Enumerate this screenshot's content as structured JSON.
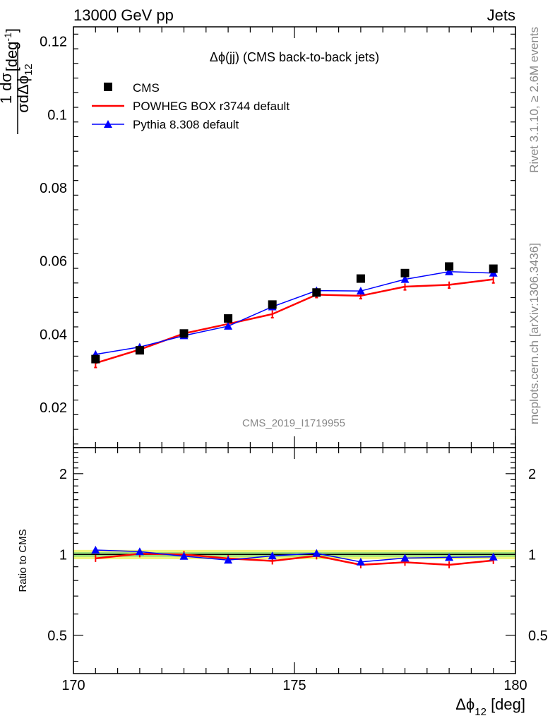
{
  "header": {
    "left": "13000 GeV pp",
    "right": "Jets"
  },
  "side_text": {
    "rivet": "Rivet 3.1.10, ≥ 2.6M events",
    "mcplots": "mcplots.cern.ch [arXiv:1306.3436]"
  },
  "chart_data": [
    {
      "type": "scatter",
      "title": "Δϕ(jj) (CMS back-to-back jets)",
      "ylabel": "1/σ dσ/dΔϕ_12 [deg^-1]",
      "watermark": "CMS_2019_I1719955",
      "xlim": [
        170,
        180
      ],
      "ylim": [
        0.009,
        0.124
      ],
      "ytick_labels": [
        "0.02",
        "0.04",
        "0.06",
        "0.08",
        "0.1",
        "0.12"
      ],
      "ytick_values": [
        0.02,
        0.04,
        0.06,
        0.08,
        0.1,
        0.12
      ],
      "x": [
        170.5,
        171.5,
        172.5,
        173.5,
        174.5,
        175.5,
        176.5,
        177.5,
        178.5,
        179.5
      ],
      "series": [
        {
          "name": "CMS",
          "color": "#000000",
          "marker": "square",
          "values": [
            0.0332,
            0.0356,
            0.0402,
            0.0443,
            0.0481,
            0.0514,
            0.0552,
            0.0567,
            0.0585,
            0.0579
          ]
        },
        {
          "name": "POWHEG BOX r3744 default",
          "color": "#ff0000",
          "marker": "none",
          "values": [
            0.0321,
            0.0358,
            0.0402,
            0.0428,
            0.0455,
            0.0508,
            0.0505,
            0.053,
            0.0535,
            0.055
          ],
          "errors": [
            0.0012,
            0.0008,
            0.0008,
            0.0008,
            0.001,
            0.0008,
            0.0008,
            0.0009,
            0.0009,
            0.001
          ]
        },
        {
          "name": "Pythia 8.308 default",
          "color": "#0000ff",
          "marker": "triangle",
          "values": [
            0.0345,
            0.0365,
            0.0396,
            0.0422,
            0.0475,
            0.0519,
            0.0518,
            0.055,
            0.0571,
            0.0567
          ]
        }
      ]
    },
    {
      "type": "line",
      "ylabel": "Ratio to CMS",
      "xlabel": "Δϕ_12 [deg]",
      "log_y": true,
      "xlim": [
        170,
        180
      ],
      "ylim": [
        0.36,
        2.5
      ],
      "xtick_labels": [
        "170",
        "175",
        "180"
      ],
      "xtick_values": [
        170,
        175,
        180
      ],
      "ytick_labels": [
        "0.5",
        "1",
        "2"
      ],
      "ytick_values": [
        0.5,
        1,
        2
      ],
      "x": [
        170.5,
        171.5,
        172.5,
        173.5,
        174.5,
        175.5,
        176.5,
        177.5,
        178.5,
        179.5
      ],
      "band": {
        "inner": [
          0.98,
          1.02
        ],
        "outer": [
          0.96,
          1.04
        ]
      },
      "series": [
        {
          "name": "POWHEG BOX r3744 default",
          "color": "#ff0000",
          "values": [
            0.967,
            1.006,
            1.0,
            0.966,
            0.946,
            0.988,
            0.915,
            0.935,
            0.915,
            0.95
          ]
        },
        {
          "name": "Pythia 8.308 default",
          "color": "#0000ff",
          "values": [
            1.039,
            1.025,
            0.985,
            0.953,
            0.988,
            1.01,
            0.938,
            0.97,
            0.976,
            0.979
          ]
        }
      ]
    }
  ]
}
